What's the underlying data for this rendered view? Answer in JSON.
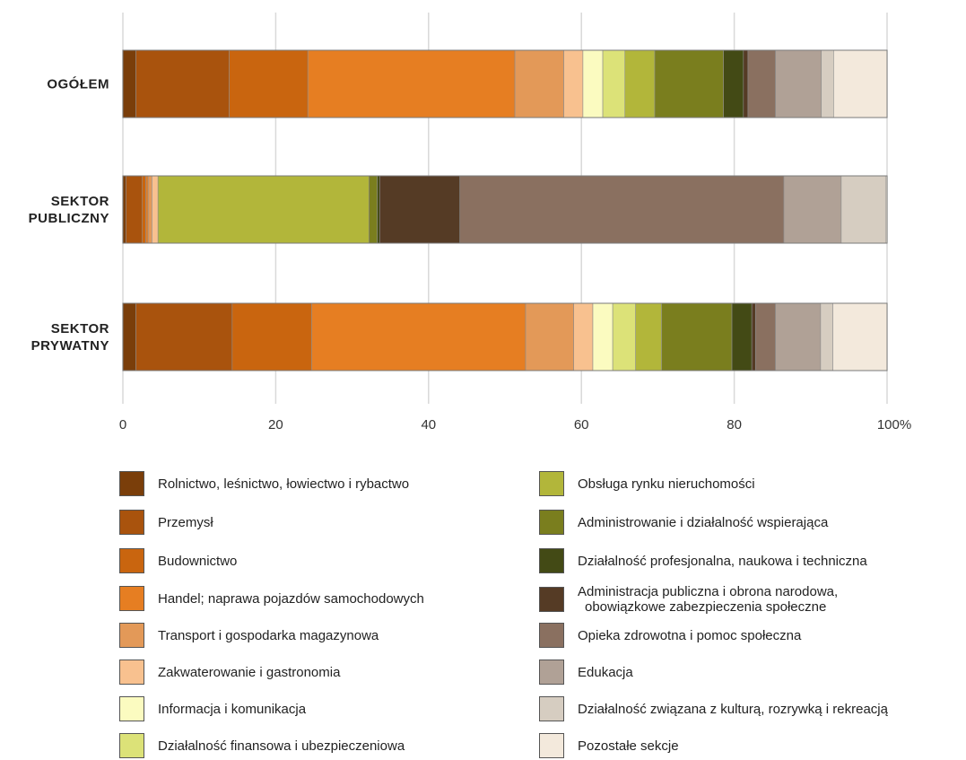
{
  "chart_data": {
    "type": "bar",
    "orientation": "horizontal",
    "stacked": true,
    "percent": true,
    "categories": [
      "OGÓŁEM",
      "SEKTOR PUBLICZNY",
      "SEKTOR PRYWATNY"
    ],
    "xlim": [
      0,
      100
    ],
    "xticks": [
      "0",
      "20",
      "40",
      "60",
      "80",
      "100%"
    ],
    "grid": "vertical",
    "legend_position": "bottom",
    "series": [
      {
        "name": "Rolnictwo, leśnictwo, łowiectwo i rybactwo",
        "color": "#7a3e0a",
        "values": [
          1.7,
          0.4,
          1.7
        ]
      },
      {
        "name": "Przemysł",
        "color": "#a9530d",
        "values": [
          12.2,
          2.1,
          12.6
        ]
      },
      {
        "name": "Budownictwo",
        "color": "#c9650f",
        "values": [
          10.3,
          0.5,
          10.4
        ]
      },
      {
        "name": "Handel; naprawa pojazdów samochodowych",
        "color": "#e67e22",
        "values": [
          27.1,
          0.3,
          28.0
        ]
      },
      {
        "name": "Transport i gospodarka magazynowa",
        "color": "#e39958",
        "values": [
          6.4,
          0.5,
          6.3
        ]
      },
      {
        "name": "Zakwaterowanie i gastronomia",
        "color": "#f8c18f",
        "values": [
          2.5,
          0.8,
          2.5
        ]
      },
      {
        "name": "Informacja i komunikacja",
        "color": "#fbfbc0",
        "values": [
          2.6,
          0.0,
          2.6
        ]
      },
      {
        "name": "Działalność finansowa i ubezpieczeniowa",
        "color": "#dce278",
        "values": [
          2.9,
          0.0,
          3.0
        ]
      },
      {
        "name": "Obsługa rynku nieruchomości",
        "color": "#b2b63a",
        "values": [
          3.9,
          27.6,
          3.4
        ]
      },
      {
        "name": "Administrowanie i działalność wspierająca",
        "color": "#7a7e1e",
        "values": [
          9.0,
          1.1,
          9.2
        ]
      },
      {
        "name": "Działalność profesjonalna, naukowa i techniczna",
        "color": "#434a15",
        "values": [
          2.6,
          0.3,
          2.6
        ]
      },
      {
        "name": "Administracja publiczna i obrona narodowa, obowiązkowe zabezpieczenia społeczne",
        "color": "#553b25",
        "values": [
          0.6,
          10.5,
          0.5
        ]
      },
      {
        "name": "Opieka zdrowotna i pomoc społeczna",
        "color": "#8a7060",
        "values": [
          3.6,
          42.4,
          2.6
        ]
      },
      {
        "name": "Edukacja",
        "color": "#b0a196",
        "values": [
          6.0,
          7.5,
          5.9
        ]
      },
      {
        "name": "Działalność związana z kulturą, rozrywką i rekreacją",
        "color": "#d6cdc1",
        "values": [
          1.6,
          5.8,
          1.6
        ]
      },
      {
        "name": "Pozostałe sekcje",
        "color": "#f3e9dc",
        "values": [
          7.0,
          0.2,
          7.1
        ]
      }
    ]
  }
}
